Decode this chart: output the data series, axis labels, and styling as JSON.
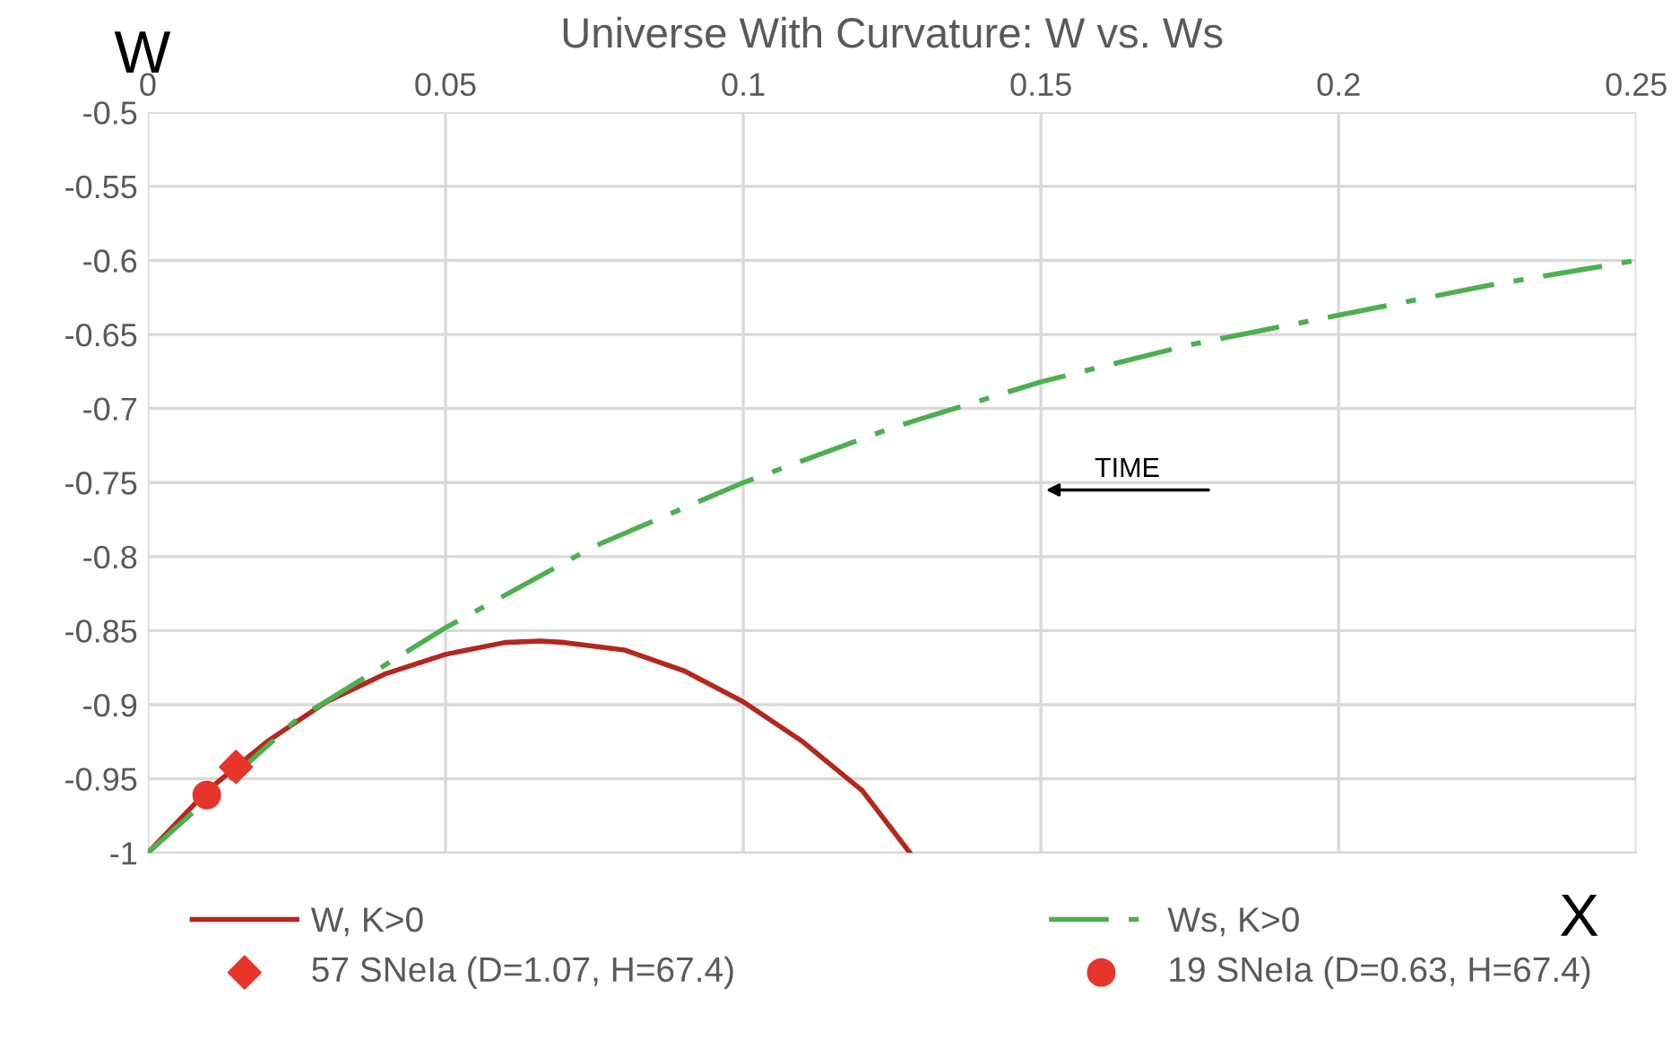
{
  "chart_data": {
    "type": "line",
    "title": "Universe With Curvature: W vs. Ws",
    "xlabel": "X",
    "ylabel": "W",
    "xlim": [
      0,
      0.25
    ],
    "xticks": [
      0,
      0.05,
      0.1,
      0.15,
      0.2,
      0.25
    ],
    "ylim": [
      -1,
      -0.5
    ],
    "yticks": [
      -1,
      -0.95,
      -0.9,
      -0.85,
      -0.8,
      -0.75,
      -0.7,
      -0.65,
      -0.6,
      -0.55,
      -0.5
    ],
    "grid": true,
    "legend": "bottom",
    "series": [
      {
        "name": "W, K>0",
        "color": "#b5271e",
        "line_style": "solid",
        "marker": "none",
        "x": [
          0,
          0.01,
          0.02,
          0.03,
          0.04,
          0.05,
          0.06,
          0.066,
          0.07,
          0.08,
          0.09,
          0.1,
          0.11,
          0.12,
          0.128
        ],
        "values": [
          -1,
          -0.958,
          -0.925,
          -0.898,
          -0.879,
          -0.866,
          -0.858,
          -0.857,
          -0.858,
          -0.863,
          -0.877,
          -0.898,
          -0.925,
          -0.958,
          -1.0
        ]
      },
      {
        "name": "Ws, K>0",
        "color": "#4caf50",
        "line_style": "dashdot",
        "marker": "none",
        "x": [
          0,
          0.025,
          0.05,
          0.075,
          0.1,
          0.125,
          0.15,
          0.175,
          0.2,
          0.225,
          0.25
        ],
        "values": [
          -1,
          -0.91,
          -0.848,
          -0.793,
          -0.75,
          -0.713,
          -0.682,
          -0.657,
          -0.637,
          -0.617,
          -0.6
        ]
      },
      {
        "name": "57 SNeIa (D=1.07, H=67.4)",
        "type": "scatter",
        "color": "#e8352a",
        "marker": "diamond",
        "x": [
          0.0148
        ],
        "values": [
          -0.942
        ]
      },
      {
        "name": "19 SNeIa (D=0.63, H=67.4)",
        "type": "scatter",
        "color": "#e8352a",
        "marker": "circle",
        "x": [
          0.0099
        ],
        "values": [
          -0.961
        ]
      }
    ],
    "annotations": [
      "TIME"
    ]
  }
}
